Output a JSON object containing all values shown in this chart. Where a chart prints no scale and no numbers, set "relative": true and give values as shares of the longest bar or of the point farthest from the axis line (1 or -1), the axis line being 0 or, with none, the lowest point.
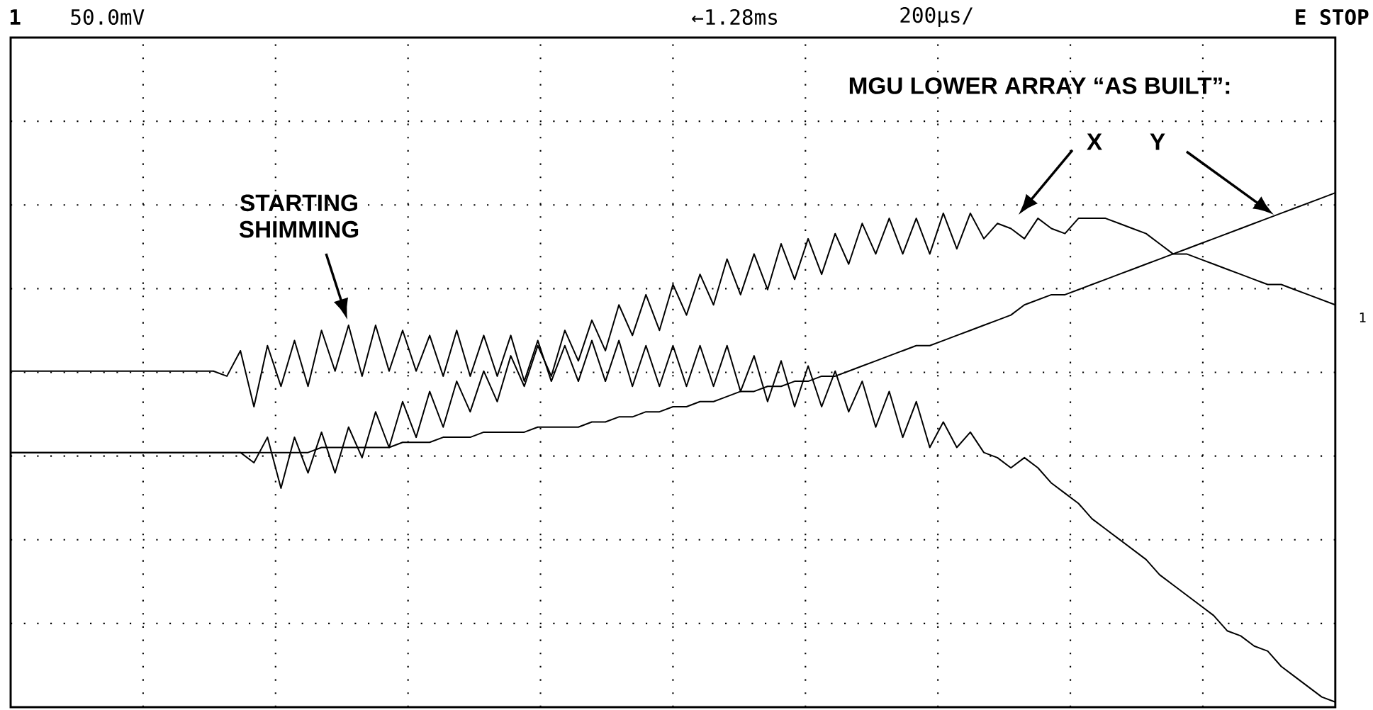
{
  "chart_data": {
    "type": "line",
    "title": "MGU  LOWER ARRAY “AS BUILT”:",
    "relative": true,
    "grid": true,
    "annotations": [
      "1",
      "50.0mV",
      "←1.28ms",
      "200µs/",
      "E  STOP",
      "X",
      "Y",
      "STARTING SHIMMING",
      "1"
    ],
    "categories": [
      null,
      null,
      null,
      null,
      null,
      null,
      null,
      null,
      null,
      null,
      null,
      null,
      null,
      null,
      null,
      null,
      null,
      null,
      null,
      null,
      null,
      null,
      null,
      null,
      null,
      null,
      null,
      null,
      null,
      null,
      null,
      null,
      null,
      null,
      null,
      null,
      null,
      null,
      null,
      null,
      null,
      null,
      null,
      null,
      null,
      null,
      null,
      null,
      null,
      null,
      null,
      null,
      null,
      null,
      null,
      null,
      null,
      null,
      null,
      null,
      null,
      null,
      null,
      null,
      null,
      null,
      null,
      null,
      null,
      null,
      null,
      null,
      null,
      null,
      null,
      null,
      null,
      null,
      null,
      null,
      null,
      null,
      null,
      null,
      null,
      null,
      null,
      null,
      null,
      null,
      null,
      null,
      null,
      null,
      null,
      null,
      null,
      null,
      null
    ],
    "series": [
      {
        "color": "#000000",
        "values": [
          0.65,
          0.65,
          0.65,
          0.65,
          0.65,
          0.65,
          0.65,
          0.65,
          0.65,
          0.65,
          0.65,
          0.65,
          0.65,
          0.65,
          0.65,
          0.65,
          0.64,
          0.69,
          0.58,
          0.7,
          0.62,
          0.71,
          0.62,
          0.73,
          0.65,
          0.74,
          0.64,
          0.74,
          0.65,
          0.73,
          0.65,
          0.72,
          0.64,
          0.73,
          0.64,
          0.72,
          0.64,
          0.72,
          0.63,
          0.71,
          0.63,
          0.7,
          0.63,
          0.71,
          0.63,
          0.71,
          0.62,
          0.7,
          0.62,
          0.7,
          0.62,
          0.7,
          0.62,
          0.7,
          0.61,
          0.68,
          0.59,
          0.67,
          0.58,
          0.66,
          0.58,
          0.65,
          0.57,
          0.63,
          0.54,
          0.61,
          0.52,
          0.59,
          0.5,
          0.55,
          0.5,
          0.53,
          0.49,
          0.48,
          0.46,
          0.48,
          0.46,
          0.43,
          0.41,
          0.39,
          0.36,
          0.34,
          0.32,
          0.3,
          0.28,
          0.25,
          0.23,
          0.21,
          0.19,
          0.17,
          0.14,
          0.13,
          0.11,
          0.1,
          0.07,
          0.05,
          0.03,
          0.01,
          0
        ]
      },
      {
        "color": "#000000",
        "values": [
          0.49,
          0.49,
          0.49,
          0.49,
          0.49,
          0.49,
          0.49,
          0.49,
          0.49,
          0.49,
          0.49,
          0.49,
          0.49,
          0.49,
          0.49,
          0.49,
          0.49,
          0.49,
          0.47,
          0.52,
          0.42,
          0.52,
          0.45,
          0.53,
          0.45,
          0.54,
          0.48,
          0.57,
          0.5,
          0.59,
          0.52,
          0.61,
          0.54,
          0.63,
          0.57,
          0.65,
          0.59,
          0.68,
          0.62,
          0.7,
          0.64,
          0.73,
          0.67,
          0.75,
          0.69,
          0.78,
          0.72,
          0.8,
          0.73,
          0.82,
          0.76,
          0.84,
          0.78,
          0.87,
          0.8,
          0.88,
          0.81,
          0.9,
          0.83,
          0.91,
          0.84,
          0.92,
          0.86,
          0.94,
          0.88,
          0.95,
          0.88,
          0.95,
          0.88,
          0.96,
          0.89,
          0.96,
          0.91,
          0.94,
          0.93,
          0.91,
          0.95,
          0.93,
          0.92,
          0.95,
          0.95,
          0.95,
          0.94,
          0.93,
          0.92,
          0.9,
          0.88,
          0.88,
          0.87,
          0.86,
          0.85,
          0.84,
          0.83,
          0.82,
          0.82,
          0.81,
          0.8,
          0.79,
          0.78
        ]
      },
      {
        "color": "#000000",
        "values": [
          0.49,
          0.49,
          0.49,
          0.49,
          0.49,
          0.49,
          0.49,
          0.49,
          0.49,
          0.49,
          0.49,
          0.49,
          0.49,
          0.49,
          0.49,
          0.49,
          0.49,
          0.49,
          0.49,
          0.49,
          0.49,
          0.49,
          0.49,
          0.5,
          0.5,
          0.5,
          0.5,
          0.5,
          0.5,
          0.51,
          0.51,
          0.51,
          0.52,
          0.52,
          0.52,
          0.53,
          0.53,
          0.53,
          0.53,
          0.54,
          0.54,
          0.54,
          0.54,
          0.55,
          0.55,
          0.56,
          0.56,
          0.57,
          0.57,
          0.58,
          0.58,
          0.59,
          0.59,
          0.6,
          0.61,
          0.61,
          0.62,
          0.62,
          0.63,
          0.63,
          0.64,
          0.64,
          0.65,
          0.66,
          0.67,
          0.68,
          0.69,
          0.7,
          0.7,
          0.71,
          0.72,
          0.73,
          0.74,
          0.75,
          0.76,
          0.78,
          0.79,
          0.8,
          0.8,
          0.81,
          0.82,
          0.83,
          0.84,
          0.85,
          0.86,
          0.87,
          0.88,
          0.89,
          0.9,
          0.91,
          0.92,
          0.93,
          0.94,
          0.95,
          0.96,
          0.97,
          0.98,
          0.99,
          1
        ]
      }
    ]
  }
}
